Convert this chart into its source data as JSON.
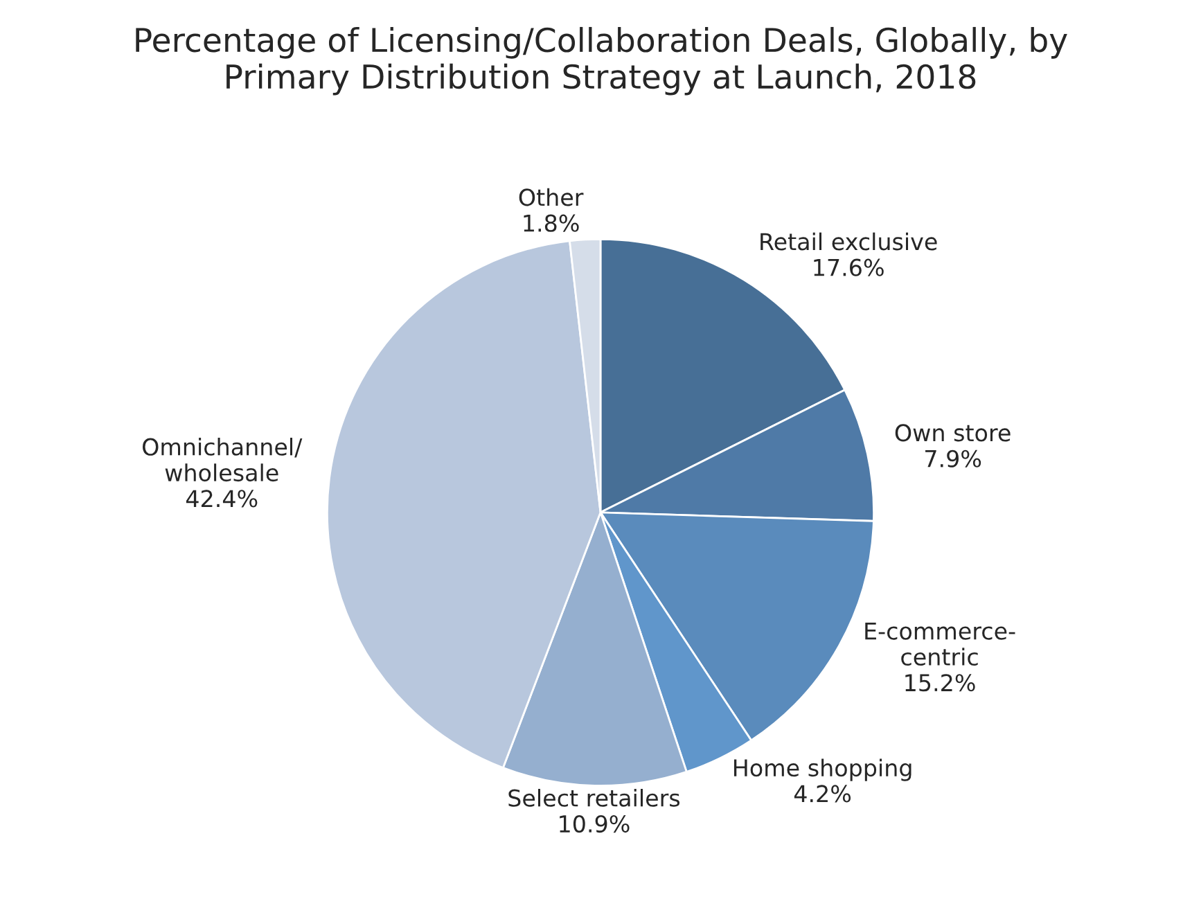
{
  "chart_data": {
    "type": "pie",
    "title": "Percentage of Licensing/Collaboration Deals, Globally, by\nPrimary Distribution Strategy at Launch, 2018",
    "categories": [
      "Retail exclusive",
      "Own store",
      "E-commerce-\ncentric",
      "Home shopping",
      "Select retailers",
      "Omnichannel/\nwholesale",
      "Other"
    ],
    "values": [
      17.6,
      7.9,
      15.2,
      4.2,
      10.9,
      42.4,
      1.8
    ],
    "colors": [
      "#476f96",
      "#4f7aa7",
      "#5a8bbc",
      "#6096cb",
      "#95afcf",
      "#b8c7dd",
      "#d5dde9"
    ],
    "value_labels": [
      "17.6%",
      "7.9%",
      "15.2%",
      "4.2%",
      "10.9%",
      "42.4%",
      "1.8%"
    ],
    "legend": false
  }
}
